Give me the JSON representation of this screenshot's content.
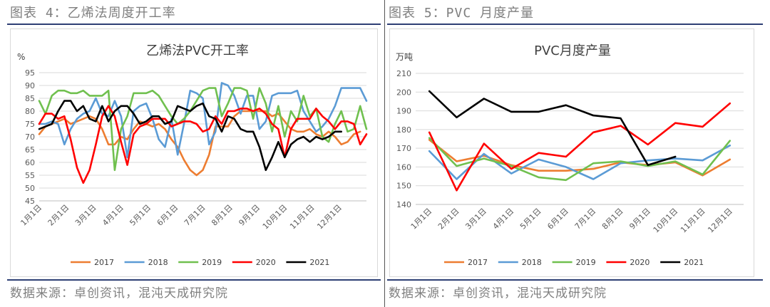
{
  "left_panel": {
    "header": "图表 4：乙烯法周度开工率",
    "source": "数据来源：卓创资讯，混沌天成研究院"
  },
  "right_panel": {
    "header": "图表 5：PVC 月度产量",
    "source": "数据来源：卓创资讯，混沌天成研究院"
  },
  "chart_data": [
    {
      "type": "line",
      "title": "乙烯法PVC开工率",
      "ylabel": "%",
      "xlabel": "",
      "ylim": [
        45,
        95
      ],
      "yticks": [
        45,
        50,
        55,
        60,
        65,
        70,
        75,
        80,
        85,
        90,
        95
      ],
      "x_ticks": [
        "1月1日",
        "2月1日",
        "3月1日",
        "4月1日",
        "5月1日",
        "6月1日",
        "7月1日",
        "8月1日",
        "9月1日",
        "10月1日",
        "11月1日",
        "12月1日"
      ],
      "x_domain": [
        1,
        53
      ],
      "grid": true,
      "legend": "bottom",
      "series": [
        {
          "name": "2017",
          "color": "#ED7D31",
          "x": [
            1,
            2,
            3,
            4,
            5,
            6,
            7,
            8,
            9,
            10,
            11,
            12,
            13,
            14,
            15,
            16,
            17,
            18,
            19,
            20,
            21,
            22,
            23,
            24,
            25,
            26,
            27,
            28,
            29,
            30,
            31,
            32,
            33,
            34,
            35,
            36,
            37,
            38,
            39,
            40,
            41,
            42,
            43,
            44,
            45,
            46,
            47,
            48,
            49,
            50,
            51,
            52
          ],
          "y": [
            71,
            74,
            75,
            76,
            77,
            75,
            76,
            77,
            78,
            77,
            73,
            67,
            67,
            70,
            69,
            73,
            76,
            75,
            74,
            75,
            73,
            69,
            66,
            61,
            57,
            55,
            57,
            63,
            74,
            74,
            74,
            78,
            80,
            80,
            80,
            80,
            80,
            78,
            79,
            76,
            73,
            72,
            72,
            73,
            71,
            70,
            72,
            70,
            67,
            68,
            71,
            72
          ]
        },
        {
          "name": "2018",
          "color": "#5B9BD5",
          "x": [
            1,
            2,
            3,
            4,
            5,
            6,
            7,
            8,
            9,
            10,
            11,
            12,
            13,
            14,
            15,
            16,
            17,
            18,
            19,
            20,
            21,
            22,
            23,
            24,
            25,
            26,
            27,
            28,
            29,
            30,
            31,
            32,
            33,
            34,
            35,
            36,
            37,
            38,
            39,
            40,
            41,
            42,
            43,
            44,
            45,
            46,
            47,
            48,
            49,
            50,
            51,
            52,
            53
          ],
          "y": [
            75,
            75,
            76,
            75,
            67,
            73,
            77,
            79,
            80,
            85,
            79,
            78,
            84,
            78,
            62,
            80,
            82,
            83,
            77,
            69,
            66,
            77,
            63,
            75,
            88,
            87,
            85,
            67,
            72,
            91,
            90,
            86,
            79,
            86,
            86,
            73,
            76,
            86,
            87,
            87,
            87,
            88,
            80,
            76,
            72,
            74,
            77,
            82,
            89,
            89,
            89,
            89,
            84
          ]
        },
        {
          "name": "2019",
          "color": "#70C04F",
          "x": [
            1,
            2,
            3,
            4,
            5,
            6,
            7,
            8,
            9,
            10,
            11,
            12,
            13,
            14,
            15,
            16,
            17,
            18,
            19,
            20,
            21,
            22,
            23,
            24,
            25,
            26,
            27,
            28,
            29,
            30,
            31,
            32,
            33,
            34,
            35,
            36,
            37,
            38,
            39,
            40,
            41,
            42,
            43,
            44,
            45,
            46,
            47,
            48,
            49,
            50,
            51,
            52,
            53
          ],
          "y": [
            84,
            79,
            86,
            88,
            88,
            87,
            87,
            88,
            86,
            86,
            86,
            88,
            57,
            73,
            78,
            87,
            87,
            87,
            88,
            86,
            82,
            78,
            75,
            77,
            80,
            84,
            88,
            89,
            89,
            78,
            83,
            89,
            89,
            88,
            77,
            89,
            83,
            72,
            82,
            70,
            80,
            76,
            86,
            78,
            81,
            70,
            68,
            75,
            80,
            72,
            73,
            82,
            73
          ]
        },
        {
          "name": "2020",
          "color": "#FF0000",
          "x": [
            1,
            2,
            3,
            4,
            5,
            6,
            7,
            8,
            9,
            10,
            11,
            12,
            13,
            14,
            15,
            16,
            17,
            18,
            19,
            20,
            21,
            22,
            23,
            24,
            25,
            26,
            27,
            28,
            29,
            30,
            31,
            32,
            33,
            34,
            35,
            36,
            37,
            38,
            39,
            40,
            41,
            42,
            43,
            44,
            45,
            46,
            47,
            48,
            49,
            50,
            51,
            52,
            53
          ],
          "y": [
            75,
            79,
            79,
            77,
            78,
            69,
            58,
            52,
            57,
            67,
            78,
            82,
            78,
            68,
            59,
            71,
            74,
            75,
            77,
            77,
            77,
            74,
            75,
            76,
            76,
            75,
            72,
            73,
            78,
            75,
            80,
            80,
            81,
            81,
            80,
            81,
            79,
            75,
            73,
            62,
            73,
            77,
            77,
            77,
            81,
            78,
            76,
            73,
            76,
            76,
            75,
            67,
            71
          ]
        },
        {
          "name": "2021",
          "color": "#000000",
          "x": [
            1,
            2,
            3,
            4,
            5,
            6,
            7,
            8,
            9,
            10,
            11,
            12,
            13,
            14,
            15,
            16,
            17,
            18,
            19,
            20,
            21,
            22,
            23,
            24,
            25,
            26,
            27,
            28,
            29,
            30,
            31,
            32,
            33,
            34,
            35,
            36,
            37,
            38,
            39,
            40,
            41,
            42,
            43,
            44,
            45,
            46,
            47,
            48,
            49
          ],
          "y": [
            73,
            74,
            75,
            80,
            84,
            84,
            80,
            82,
            77,
            76,
            82,
            76,
            80,
            82,
            82,
            79,
            75,
            76,
            78,
            78,
            75,
            76,
            82,
            81,
            80,
            82,
            83,
            78,
            77,
            72,
            78,
            77,
            73,
            72,
            72,
            66,
            57,
            62,
            68,
            62,
            67,
            69,
            70,
            68,
            70,
            69,
            70,
            72,
            72
          ]
        }
      ]
    },
    {
      "type": "line",
      "title": "PVC月度产量",
      "ylabel": "万吨",
      "xlabel": "",
      "ylim": [
        140,
        210
      ],
      "yticks": [
        140,
        150,
        160,
        170,
        180,
        190,
        200,
        210
      ],
      "categories": [
        "1月1日",
        "2月1日",
        "3月1日",
        "4月1日",
        "5月1日",
        "6月1日",
        "7月1日",
        "8月1日",
        "9月1日",
        "10月1日",
        "11月1日",
        "12月1日"
      ],
      "grid": true,
      "legend": "bottom",
      "series": [
        {
          "name": "2017",
          "color": "#ED7D31",
          "values": [
            174.5,
            163,
            166,
            161,
            158,
            158,
            159,
            162.5,
            161,
            162.5,
            155.5,
            164
          ]
        },
        {
          "name": "2018",
          "color": "#5B9BD5",
          "values": [
            168.5,
            153.5,
            167,
            156.5,
            164,
            160,
            153.5,
            162,
            163.5,
            164.5,
            163.5,
            171.5
          ]
        },
        {
          "name": "2019",
          "color": "#70C04F",
          "values": [
            175.5,
            160.5,
            164.5,
            160.5,
            154.5,
            153,
            162,
            163,
            160.5,
            163,
            156,
            174
          ]
        },
        {
          "name": "2020",
          "color": "#FF0000",
          "values": [
            178.5,
            147.5,
            172.5,
            159,
            167.5,
            165.5,
            178.5,
            182,
            172,
            183.5,
            181.5,
            194
          ]
        },
        {
          "name": "2021",
          "color": "#000000",
          "values": [
            200.5,
            186.5,
            196.5,
            189.5,
            189.5,
            193,
            187.5,
            186,
            161,
            165.5,
            null,
            null
          ]
        }
      ]
    }
  ]
}
